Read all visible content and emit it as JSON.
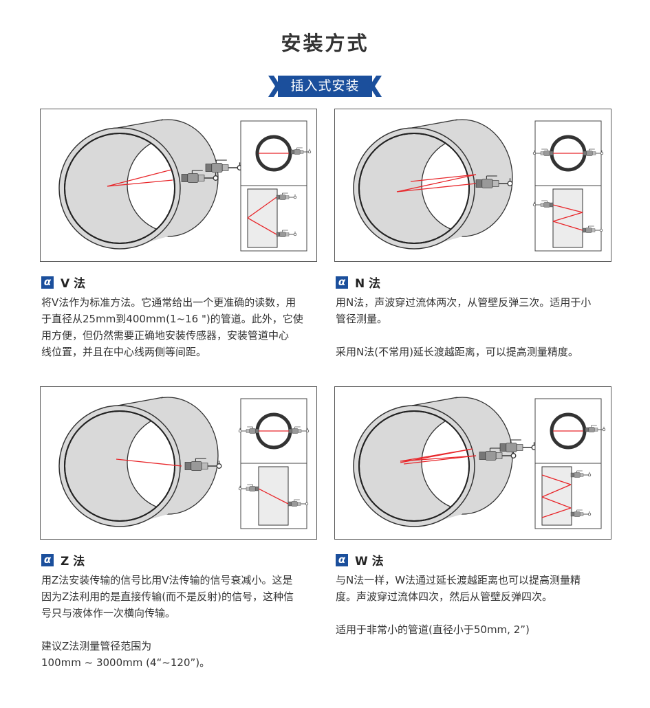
{
  "page_title": "安装方式",
  "banner": "插入式安装",
  "colors": {
    "accent": "#1b4f9c",
    "beam": "#e8262a",
    "pipe": "#d9d9d9"
  },
  "icon": "alpha-icon",
  "methods": [
    {
      "type": "V",
      "heading": "V 法",
      "paragraphs": [
        [
          "将V法作为标准方法。它通常给出一个更准确的读数，用",
          "于直径从25mm到400mm(1~16 \")的管道。此外，它使",
          "用方便，但仍然需要正确地安装传感器，安装管道中心",
          "线位置，并且在中心线两侧等间距。"
        ]
      ]
    },
    {
      "type": "N",
      "heading": "N 法",
      "paragraphs": [
        [
          "用N法，声波穿过流体两次，从管壁反弹三次。适用于小",
          "管径测量。"
        ],
        [
          "采用N法(不常用)延长渡越距离，可以提高测量精度。"
        ]
      ]
    },
    {
      "type": "Z",
      "heading": "Z 法",
      "paragraphs": [
        [
          "用Z法安装传输的信号比用V法传输的信号衰减小。这是",
          "因为Z法利用的是直接传输(而不是反射)的信号，这种信",
          "号只与液体作一次横向传输。"
        ],
        [
          "建议Z法测量管径范围为",
          "100mm ~ 3000mm (4“~120”)。"
        ]
      ]
    },
    {
      "type": "W",
      "heading": "W 法",
      "paragraphs": [
        [
          "与N法一样，W法通过延长渡越距离也可以提高测量精",
          "度。声波穿过流体四次，然后从管壁反弹四次。"
        ],
        [
          "适用于非常小的管道(直径小于50mm, 2”)"
        ]
      ]
    }
  ]
}
